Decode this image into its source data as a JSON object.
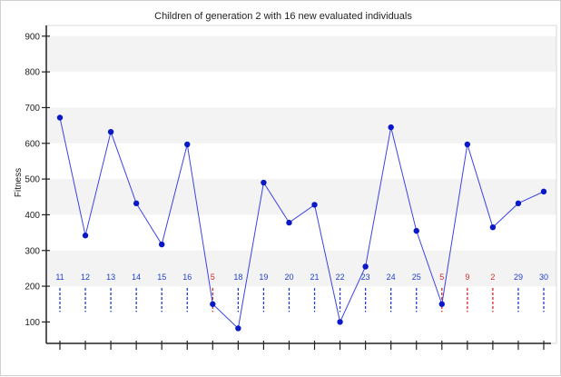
{
  "chart_data": {
    "type": "line",
    "title": "Children of generation 2 with 16 new evaluated individuals",
    "xlabel": "",
    "ylabel": "Fitness",
    "ylim": [
      40,
      930
    ],
    "yticks": [
      100,
      200,
      300,
      400,
      500,
      600,
      700,
      800,
      900
    ],
    "grid": "alternating horizontal bands",
    "legend": "none",
    "series": [
      {
        "labels": [
          "11",
          "12",
          "13",
          "14",
          "15",
          "16",
          "5",
          "18",
          "19",
          "20",
          "21",
          "22",
          "23",
          "24",
          "25",
          "5",
          "9",
          "2",
          "29",
          "30"
        ],
        "values": [
          672,
          342,
          632,
          432,
          317,
          597,
          150,
          82,
          490,
          378,
          428,
          100,
          255,
          645,
          355,
          150,
          597,
          365,
          432,
          465
        ],
        "label_colors": [
          "#1f3fcf",
          "#1f3fcf",
          "#1f3fcf",
          "#1f3fcf",
          "#1f3fcf",
          "#1f3fcf",
          "#d62a2a",
          "#1f3fcf",
          "#1f3fcf",
          "#1f3fcf",
          "#1f3fcf",
          "#1f3fcf",
          "#1f3fcf",
          "#1f3fcf",
          "#1f3fcf",
          "#d62a2a",
          "#d62a2a",
          "#d62a2a",
          "#1f3fcf",
          "#1f3fcf"
        ]
      }
    ]
  },
  "colors": {
    "line": "#3a44e6",
    "marker": "#0a18c8",
    "band": "#f3f3f3",
    "axis": "#222222"
  }
}
